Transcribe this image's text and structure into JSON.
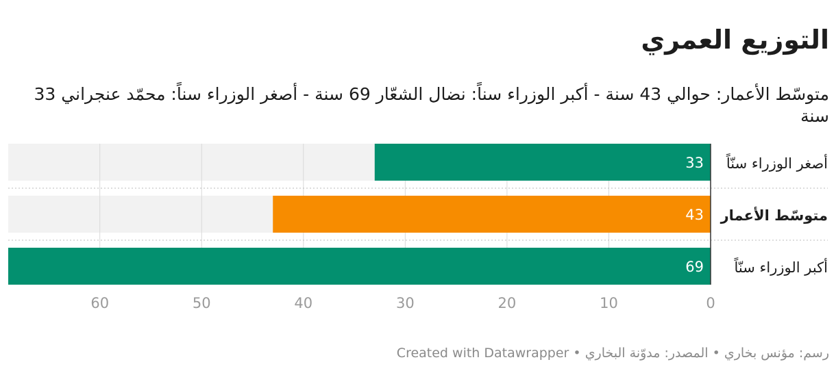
{
  "chart_data": {
    "type": "bar",
    "orientation": "horizontal",
    "direction": "rtl",
    "title": "التوزيع العمري",
    "subtitle": "متوسّط الأعمار: حوالي 43 سنة - أكبر الوزراء سناً: نضال الشعّار 69 سنة - أصغر الوزراء سناً: محمّد عنجراني 33 سنة",
    "categories": [
      "أصغر الوزراء سنّاً",
      "متوسّط الأعمار",
      "أكبر الوزراء سنّاً"
    ],
    "values": [
      33,
      43,
      69
    ],
    "bar_colors": [
      "#03906f",
      "#f78c00",
      "#03906f"
    ],
    "bold_categories": [
      "متوسّط الأعمار"
    ],
    "xlim": [
      0,
      69
    ],
    "x_ticks": [
      0,
      10,
      20,
      30,
      40,
      50,
      60
    ],
    "grid": true,
    "track_color": "#f2f2f2"
  },
  "footer": {
    "credit": "رسم: مؤنس بخاري",
    "source": "المصدر: مدوّنة البخاري",
    "tool": "Created with Datawrapper",
    "separator": "•"
  }
}
